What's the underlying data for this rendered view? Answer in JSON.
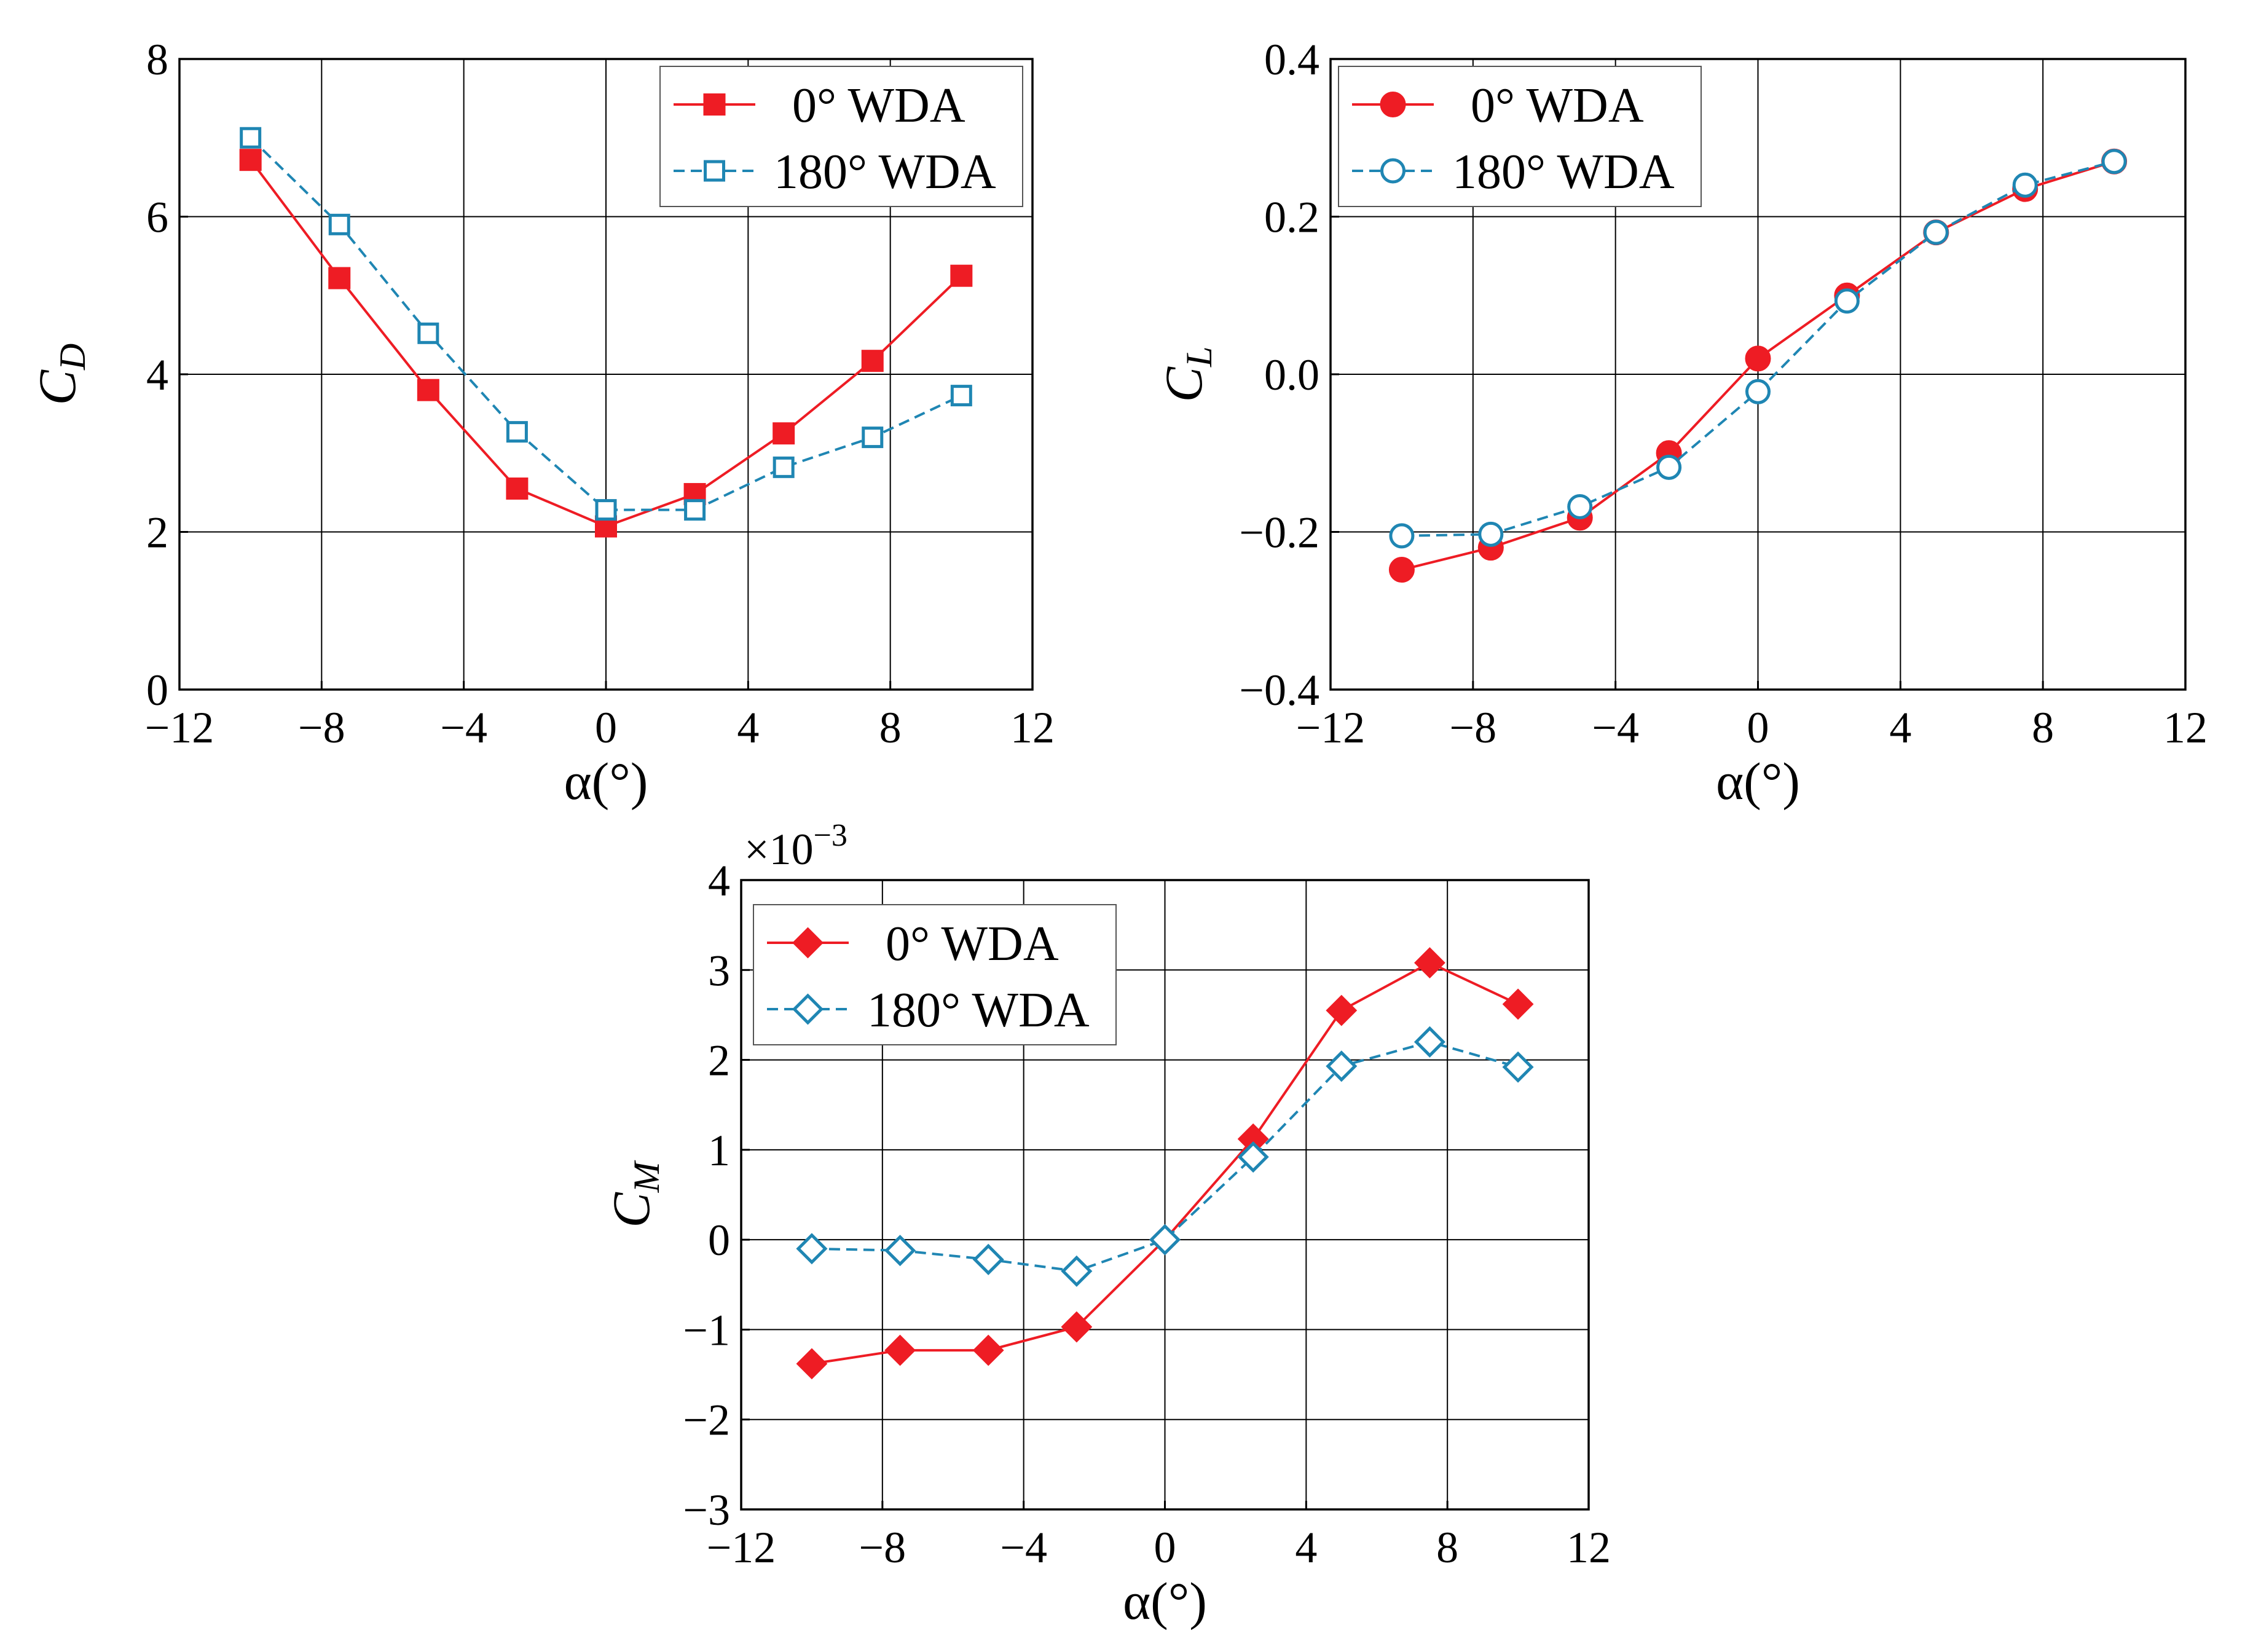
{
  "colors": {
    "zero_wda": "#ee1c24",
    "oneeighty_wda": "#1f86b3"
  },
  "chart_data": [
    {
      "id": "cd",
      "type": "line",
      "xlabel": "α(°)",
      "ylabel_main": "C",
      "ylabel_sub": "D",
      "scale_label_base": "",
      "scale_label_exp": "",
      "xlim": [
        -12,
        12
      ],
      "ylim": [
        0,
        8
      ],
      "xticks": [
        -12,
        -8,
        -4,
        0,
        4,
        8,
        12
      ],
      "xtick_labels": [
        "−12",
        "−8",
        "−4",
        "0",
        "4",
        "8",
        "12"
      ],
      "yticks": [
        0,
        2,
        4,
        6,
        8
      ],
      "ytick_labels": [
        "0",
        "2",
        "4",
        "6",
        "8"
      ],
      "grid": true,
      "legend_position": "top-right",
      "marker_shape": "square",
      "series": [
        {
          "name": "0° WDA",
          "style": "solid-filled",
          "x": [
            -10,
            -7.5,
            -5,
            -2.5,
            0,
            2.5,
            5,
            7.5,
            10
          ],
          "y": [
            6.72,
            5.22,
            3.8,
            2.55,
            2.07,
            2.48,
            3.25,
            4.17,
            5.25
          ]
        },
        {
          "name": "180° WDA",
          "style": "dashed-open",
          "x": [
            -10,
            -7.5,
            -5,
            -2.5,
            0,
            2.5,
            5,
            7.5,
            10
          ],
          "y": [
            7.0,
            5.9,
            4.52,
            3.27,
            2.28,
            2.28,
            2.82,
            3.2,
            3.73
          ]
        }
      ]
    },
    {
      "id": "cl",
      "type": "line",
      "xlabel": "α(°)",
      "ylabel_main": "C",
      "ylabel_sub": "L",
      "scale_label_base": "",
      "scale_label_exp": "",
      "xlim": [
        -12,
        12
      ],
      "ylim": [
        -0.4,
        0.4
      ],
      "xticks": [
        -12,
        -8,
        -4,
        0,
        4,
        8,
        12
      ],
      "xtick_labels": [
        "−12",
        "−8",
        "−4",
        "0",
        "4",
        "8",
        "12"
      ],
      "yticks": [
        -0.4,
        -0.2,
        0.0,
        0.2,
        0.4
      ],
      "ytick_labels": [
        "−0.4",
        "−0.2",
        "0.0",
        "0.2",
        "0.4"
      ],
      "grid": true,
      "legend_position": "top-left",
      "marker_shape": "circle",
      "series": [
        {
          "name": "0° WDA",
          "style": "solid-filled",
          "x": [
            -10,
            -7.5,
            -5,
            -2.5,
            0,
            2.5,
            5,
            7.5,
            10
          ],
          "y": [
            -0.248,
            -0.22,
            -0.182,
            -0.1,
            0.02,
            0.1,
            0.18,
            0.235,
            0.27
          ]
        },
        {
          "name": "180° WDA",
          "style": "dashed-open",
          "x": [
            -10,
            -7.5,
            -5,
            -2.5,
            0,
            2.5,
            5,
            7.5,
            10
          ],
          "y": [
            -0.205,
            -0.203,
            -0.168,
            -0.118,
            -0.022,
            0.093,
            0.18,
            0.24,
            0.27
          ]
        }
      ]
    },
    {
      "id": "cm",
      "type": "line",
      "xlabel": "α(°)",
      "ylabel_main": "C",
      "ylabel_sub": "M",
      "scale_label_base": "×10",
      "scale_label_exp": "−3",
      "xlim": [
        -12,
        12
      ],
      "ylim": [
        -3,
        4
      ],
      "xticks": [
        -12,
        -8,
        -4,
        0,
        4,
        8,
        12
      ],
      "xtick_labels": [
        "−12",
        "−8",
        "−4",
        "0",
        "4",
        "8",
        "12"
      ],
      "yticks": [
        -3,
        -2,
        -1,
        0,
        1,
        2,
        3,
        4
      ],
      "ytick_labels": [
        "−3",
        "−2",
        "−1",
        "0",
        "1",
        "2",
        "3",
        "4"
      ],
      "grid": true,
      "legend_position": "top-left",
      "marker_shape": "diamond",
      "series": [
        {
          "name": "0° WDA",
          "style": "solid-filled",
          "x": [
            -10,
            -7.5,
            -5,
            -2.5,
            0,
            2.5,
            5,
            7.5,
            10
          ],
          "y": [
            -1.38,
            -1.23,
            -1.23,
            -0.97,
            0.0,
            1.12,
            2.55,
            3.08,
            2.62
          ]
        },
        {
          "name": "180° WDA",
          "style": "dashed-open",
          "x": [
            -10,
            -7.5,
            -5,
            -2.5,
            0,
            2.5,
            5,
            7.5,
            10
          ],
          "y": [
            -0.1,
            -0.12,
            -0.22,
            -0.35,
            0.0,
            0.92,
            1.93,
            2.2,
            1.92
          ]
        }
      ]
    }
  ]
}
